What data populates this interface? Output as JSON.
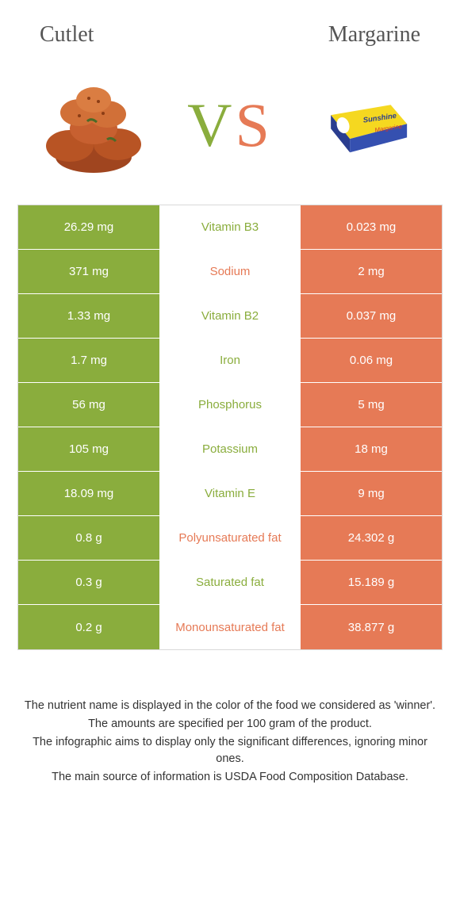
{
  "header": {
    "left_title": "Cutlet",
    "right_title": "Margarine"
  },
  "vs": {
    "v": "V",
    "s": "S"
  },
  "colors": {
    "green": "#8aad3d",
    "orange": "#e67a56",
    "white": "#ffffff"
  },
  "rows": [
    {
      "left": "26.29 mg",
      "mid": "Vitamin B3",
      "right": "0.023 mg",
      "left_bg": "green",
      "mid_txt": "green",
      "right_bg": "orange"
    },
    {
      "left": "371 mg",
      "mid": "Sodium",
      "right": "2 mg",
      "left_bg": "green",
      "mid_txt": "orange",
      "right_bg": "orange"
    },
    {
      "left": "1.33 mg",
      "mid": "Vitamin B2",
      "right": "0.037 mg",
      "left_bg": "green",
      "mid_txt": "green",
      "right_bg": "orange"
    },
    {
      "left": "1.7 mg",
      "mid": "Iron",
      "right": "0.06 mg",
      "left_bg": "green",
      "mid_txt": "green",
      "right_bg": "orange"
    },
    {
      "left": "56 mg",
      "mid": "Phosphorus",
      "right": "5 mg",
      "left_bg": "green",
      "mid_txt": "green",
      "right_bg": "orange"
    },
    {
      "left": "105 mg",
      "mid": "Potassium",
      "right": "18 mg",
      "left_bg": "green",
      "mid_txt": "green",
      "right_bg": "orange"
    },
    {
      "left": "18.09 mg",
      "mid": "Vitamin E",
      "right": "9 mg",
      "left_bg": "green",
      "mid_txt": "green",
      "right_bg": "orange"
    },
    {
      "left": "0.8 g",
      "mid": "Polyunsaturated fat",
      "right": "24.302 g",
      "left_bg": "green",
      "mid_txt": "orange",
      "right_bg": "orange"
    },
    {
      "left": "0.3 g",
      "mid": "Saturated fat",
      "right": "15.189 g",
      "left_bg": "green",
      "mid_txt": "green",
      "right_bg": "orange"
    },
    {
      "left": "0.2 g",
      "mid": "Monounsaturated fat",
      "right": "38.877 g",
      "left_bg": "green",
      "mid_txt": "orange",
      "right_bg": "orange"
    }
  ],
  "footer": {
    "line1": "The nutrient name is displayed in the color of the food we considered as 'winner'.",
    "line2": "The amounts are specified per 100 gram of the product.",
    "line3": "The infographic aims to display only the significant differences, ignoring minor ones.",
    "line4": "The main source of information is USDA Food Composition Database."
  }
}
